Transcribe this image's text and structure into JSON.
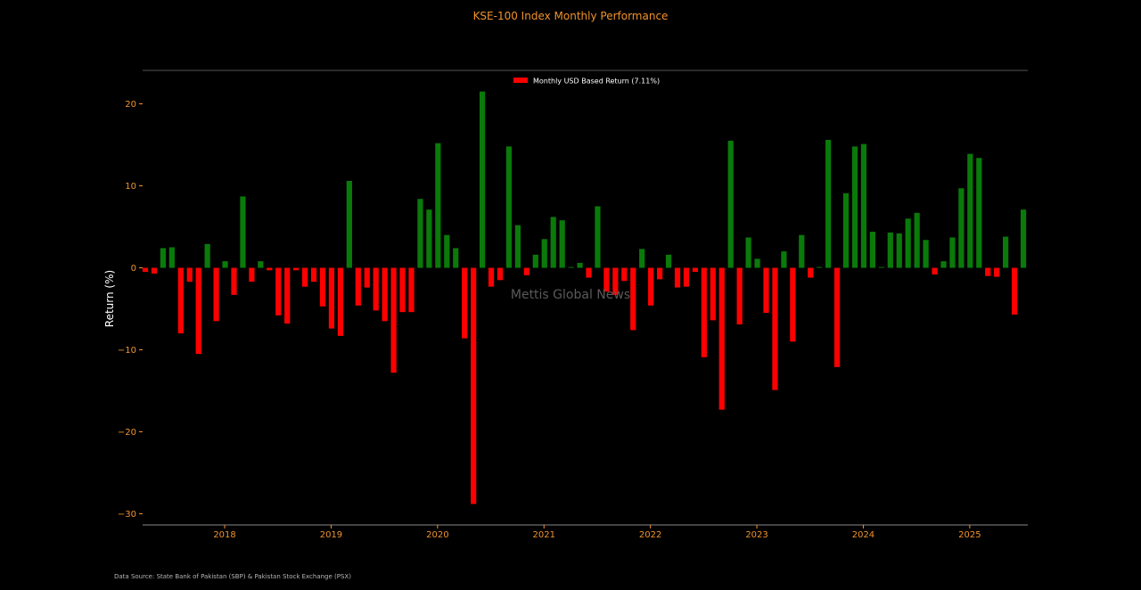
{
  "chart_data": {
    "type": "bar",
    "title": "KSE-100 Index Monthly Performance",
    "ylabel": "Return (%)",
    "xlabel": "",
    "ylim": [
      -31,
      24
    ],
    "x_start": "2017-04",
    "yticks": [
      20,
      10,
      0,
      -10,
      -20,
      -30
    ],
    "ytick_labels": [
      "20",
      "10",
      "0",
      "−10",
      "−20",
      "−30"
    ],
    "xticks": [
      {
        "label": "2018",
        "month": "2018-01"
      },
      {
        "label": "2019",
        "month": "2019-01"
      },
      {
        "label": "2020",
        "month": "2020-01"
      },
      {
        "label": "2021",
        "month": "2021-01"
      },
      {
        "label": "2022",
        "month": "2022-01"
      },
      {
        "label": "2023",
        "month": "2023-01"
      },
      {
        "label": "2024",
        "month": "2024-01"
      },
      {
        "label": "2025",
        "month": "2025-01"
      }
    ],
    "legend": {
      "label": "Monthly USD Based Return (7.11%)",
      "position": "top-center"
    },
    "positive_color": "#0a7a0a",
    "negative_color": "#ff0000",
    "series": [
      {
        "name": "Monthly USD Based Return (7.11%)",
        "values": [
          -0.5,
          -0.7,
          2.4,
          2.5,
          -8.0,
          -1.7,
          -10.5,
          2.9,
          -6.5,
          0.8,
          -3.3,
          8.7,
          -1.7,
          0.8,
          -0.3,
          -5.8,
          -6.8,
          -0.3,
          -2.3,
          -1.7,
          -4.7,
          -7.4,
          -8.3,
          10.6,
          -4.6,
          -2.4,
          -5.2,
          -6.5,
          -12.8,
          -5.4,
          -5.4,
          8.4,
          7.1,
          15.2,
          4.0,
          2.4,
          -8.6,
          -28.8,
          21.5,
          -2.3,
          -1.5,
          14.8,
          5.2,
          -0.9,
          1.6,
          3.5,
          6.2,
          5.8,
          0.1,
          0.6,
          -1.2,
          7.5,
          -2.9,
          -3.3,
          -1.6,
          -7.6,
          2.3,
          -4.6,
          -1.4,
          1.6,
          -2.4,
          -2.3,
          -0.5,
          -10.9,
          -6.4,
          -17.3,
          15.5,
          -6.9,
          3.7,
          1.1,
          -5.5,
          -14.9,
          2.0,
          -9.0,
          4.0,
          -1.2,
          0.1,
          15.6,
          -12.1,
          9.1,
          14.8,
          15.1,
          4.4,
          0.1,
          4.3,
          4.2,
          6.0,
          6.7,
          3.4,
          -0.8,
          0.8,
          3.7,
          9.7,
          13.9,
          13.4,
          -1.0,
          -1.1,
          3.8,
          -5.7,
          7.1
        ]
      }
    ]
  },
  "watermark": "Mettis Global News",
  "source_note": "Data Source: State Bank of Pakistan (SBP) & Pakistan Stock Exchange (PSX)"
}
